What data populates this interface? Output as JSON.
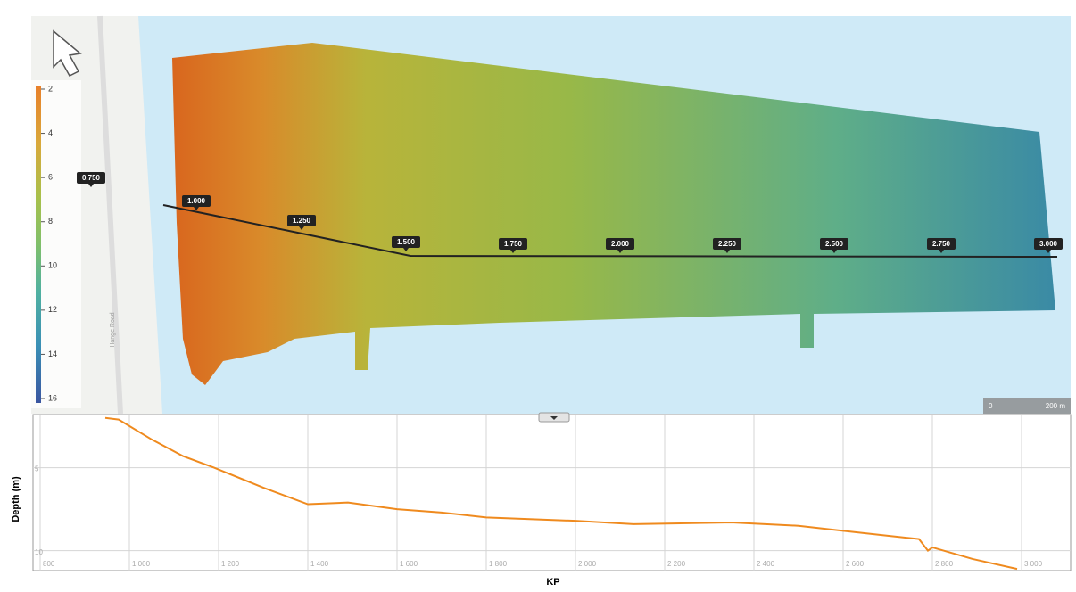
{
  "map": {
    "legend": {
      "range": [
        2,
        16
      ],
      "ticks": [
        2,
        4,
        6,
        8,
        10,
        12,
        14,
        16
      ]
    },
    "road_label": "Hange Road",
    "kp_markers": [
      "0.750",
      "1.000",
      "1.250",
      "1.500",
      "1.750",
      "2.000",
      "2.250",
      "2.500",
      "2.750",
      "3.000"
    ],
    "scale_bar": {
      "labels": [
        "0",
        "200 m"
      ]
    }
  },
  "chart_data": {
    "type": "line",
    "xlabel": "KP",
    "ylabel": "Depth (m)",
    "x": [
      946,
      976,
      1050,
      1120,
      1190,
      1300,
      1400,
      1490,
      1600,
      1700,
      1800,
      2000,
      2130,
      2350,
      2500,
      2600,
      2700,
      2770,
      2790,
      2800,
      2890,
      2990
    ],
    "series": [
      {
        "color": "#ef8a1e",
        "values": [
          2.0,
          2.1,
          3.3,
          4.3,
          5.0,
          6.2,
          7.2,
          7.1,
          7.5,
          7.7,
          8.0,
          8.2,
          8.4,
          8.3,
          8.5,
          8.8,
          9.1,
          9.3,
          10.0,
          9.8,
          10.5,
          11.1
        ]
      }
    ],
    "xlim": [
      784,
      3110
    ],
    "ylim": [
      1.8,
      11.2
    ],
    "y_inverted": true,
    "xticks": [
      800,
      {
        "value": 1000,
        "label": "1 000"
      },
      {
        "value": 1200,
        "label": "1 200"
      },
      {
        "value": 1400,
        "label": "1 400"
      },
      {
        "value": 1600,
        "label": "1 600"
      },
      {
        "value": 1800,
        "label": "1 800"
      },
      {
        "value": 2000,
        "label": "2 000"
      },
      {
        "value": 2200,
        "label": "2 200"
      },
      {
        "value": 2400,
        "label": "2 400"
      },
      {
        "value": 2600,
        "label": "2 600"
      },
      {
        "value": 2800,
        "label": "2 800"
      },
      {
        "value": 3000,
        "label": "3 000"
      }
    ],
    "yticks": [
      5,
      10
    ],
    "grid": true
  }
}
